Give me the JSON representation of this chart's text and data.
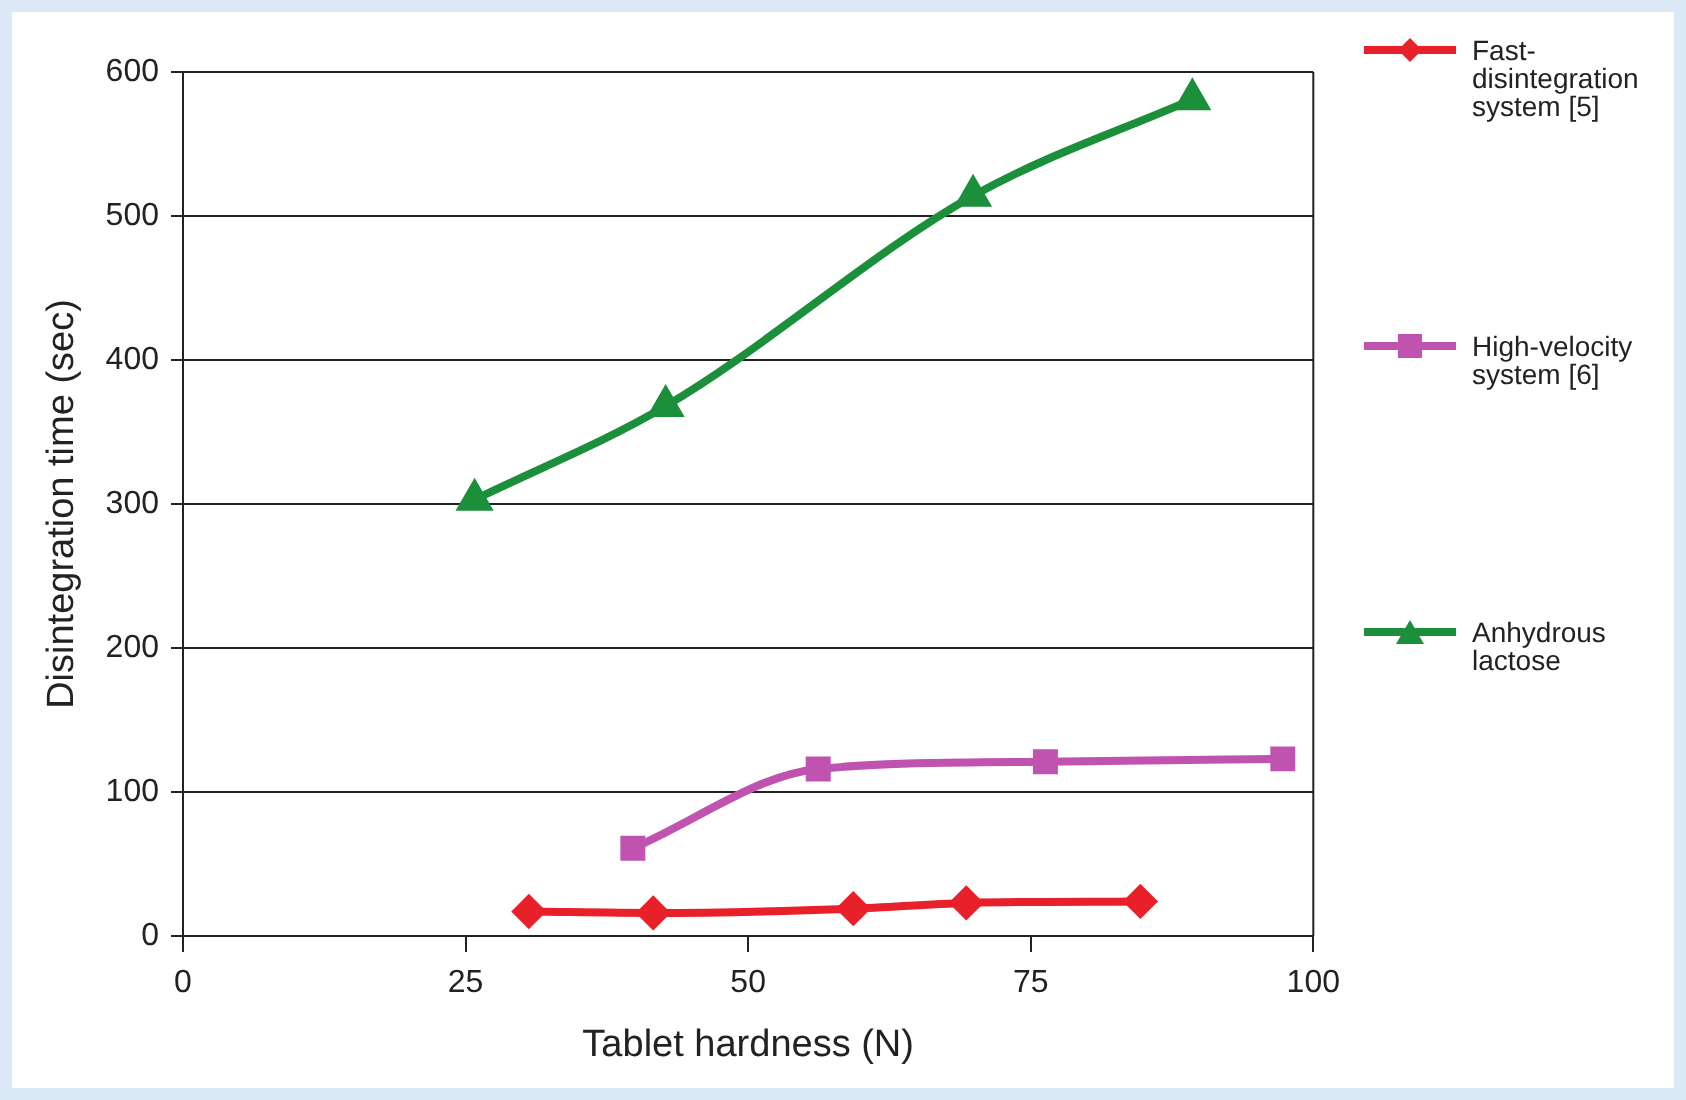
{
  "chart_data": {
    "type": "line",
    "xlabel": "Tablet hardness (N)",
    "ylabel": "Disintegration time (sec)",
    "xlim": [
      0,
      100
    ],
    "xticks": [
      0,
      25,
      50,
      75,
      100
    ],
    "ylim": [
      0,
      600
    ],
    "yticks": [
      0,
      100,
      200,
      300,
      400,
      500,
      600
    ],
    "grid": "y",
    "legend": "right",
    "line_style": "solid",
    "series": [
      {
        "name": "Fast-disintegration system [5]",
        "color": "#e8202a",
        "marker": "diamond",
        "x": [
          30.6,
          41.6,
          59.3,
          69.3,
          84.7
        ],
        "values": [
          17,
          16,
          19,
          23,
          24
        ]
      },
      {
        "name": "High-velocity system [6]",
        "color": "#c052b0",
        "marker": "square",
        "x": [
          39.8,
          56.2,
          76.3,
          97.3
        ],
        "values": [
          61,
          116,
          121,
          123
        ]
      },
      {
        "name": "Anhydrous lactose",
        "color": "#1b8f3a",
        "marker": "triangle",
        "x": [
          25.8,
          42.7,
          69.9,
          89.3
        ],
        "values": [
          303,
          368,
          514,
          581
        ]
      }
    ]
  }
}
